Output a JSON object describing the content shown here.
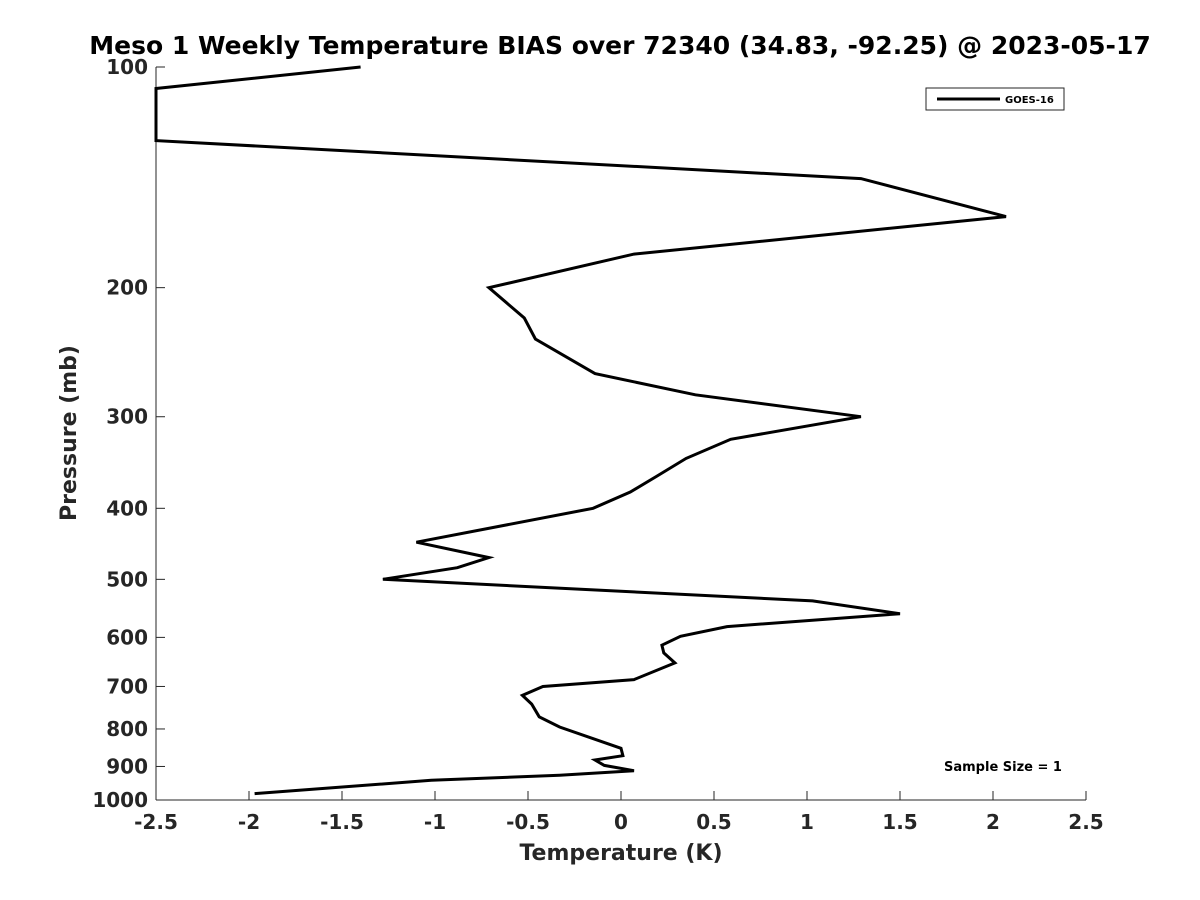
{
  "chart_data": {
    "type": "line",
    "title": "Meso 1 Weekly Temperature BIAS over 72340 (34.83, -92.25) @ 2023-05-17",
    "xlabel": "Temperature (K)",
    "ylabel": "Pressure (mb)",
    "xlim": [
      -2.5,
      2.5
    ],
    "ylim": [
      100,
      1000
    ],
    "yscale": "log",
    "y_reversed": true,
    "x_ticks": [
      -2.5,
      -2,
      -1.5,
      -1,
      -0.5,
      0,
      0.5,
      1,
      1.5,
      2,
      2.5
    ],
    "x_tick_labels": [
      "-2.5",
      "-2",
      "-1.5",
      "-1",
      "-0.5",
      "0",
      "0.5",
      "1",
      "1.5",
      "2",
      "2.5"
    ],
    "y_ticks": [
      100,
      200,
      300,
      400,
      500,
      600,
      700,
      800,
      900,
      1000
    ],
    "y_tick_labels": [
      "100",
      "200",
      "300",
      "400",
      "500",
      "600",
      "700",
      "800",
      "900",
      "1000"
    ],
    "grid": false,
    "legend_position": "top-right",
    "annotation": "Sample Size = 1",
    "series": [
      {
        "name": "GOES-16",
        "color": "#000000",
        "points": [
          {
            "x": -1.4,
            "y": 100
          },
          {
            "x": -2.5,
            "y": 107
          },
          {
            "x": -2.5,
            "y": 126
          },
          {
            "x": 1.29,
            "y": 142
          },
          {
            "x": 2.07,
            "y": 160
          },
          {
            "x": 0.07,
            "y": 180
          },
          {
            "x": -0.71,
            "y": 200
          },
          {
            "x": -0.52,
            "y": 220
          },
          {
            "x": -0.46,
            "y": 235
          },
          {
            "x": -0.14,
            "y": 262
          },
          {
            "x": 0.4,
            "y": 280
          },
          {
            "x": 1.29,
            "y": 300
          },
          {
            "x": 0.59,
            "y": 322
          },
          {
            "x": 0.35,
            "y": 342
          },
          {
            "x": 0.19,
            "y": 362
          },
          {
            "x": 0.05,
            "y": 380
          },
          {
            "x": -0.15,
            "y": 400
          },
          {
            "x": -1.1,
            "y": 445
          },
          {
            "x": -0.71,
            "y": 467
          },
          {
            "x": -0.88,
            "y": 482
          },
          {
            "x": -1.28,
            "y": 500
          },
          {
            "x": 1.03,
            "y": 535
          },
          {
            "x": 1.5,
            "y": 557
          },
          {
            "x": 0.57,
            "y": 580
          },
          {
            "x": 0.32,
            "y": 598
          },
          {
            "x": 0.22,
            "y": 615
          },
          {
            "x": 0.23,
            "y": 630
          },
          {
            "x": 0.29,
            "y": 650
          },
          {
            "x": 0.07,
            "y": 685
          },
          {
            "x": -0.42,
            "y": 700
          },
          {
            "x": -0.53,
            "y": 720
          },
          {
            "x": -0.48,
            "y": 740
          },
          {
            "x": -0.44,
            "y": 770
          },
          {
            "x": -0.33,
            "y": 795
          },
          {
            "x": 0.0,
            "y": 850
          },
          {
            "x": 0.01,
            "y": 870
          },
          {
            "x": -0.14,
            "y": 882
          },
          {
            "x": -0.09,
            "y": 897
          },
          {
            "x": 0.07,
            "y": 912
          },
          {
            "x": -0.33,
            "y": 925
          },
          {
            "x": -1.02,
            "y": 940
          },
          {
            "x": -1.97,
            "y": 980
          }
        ]
      }
    ]
  }
}
